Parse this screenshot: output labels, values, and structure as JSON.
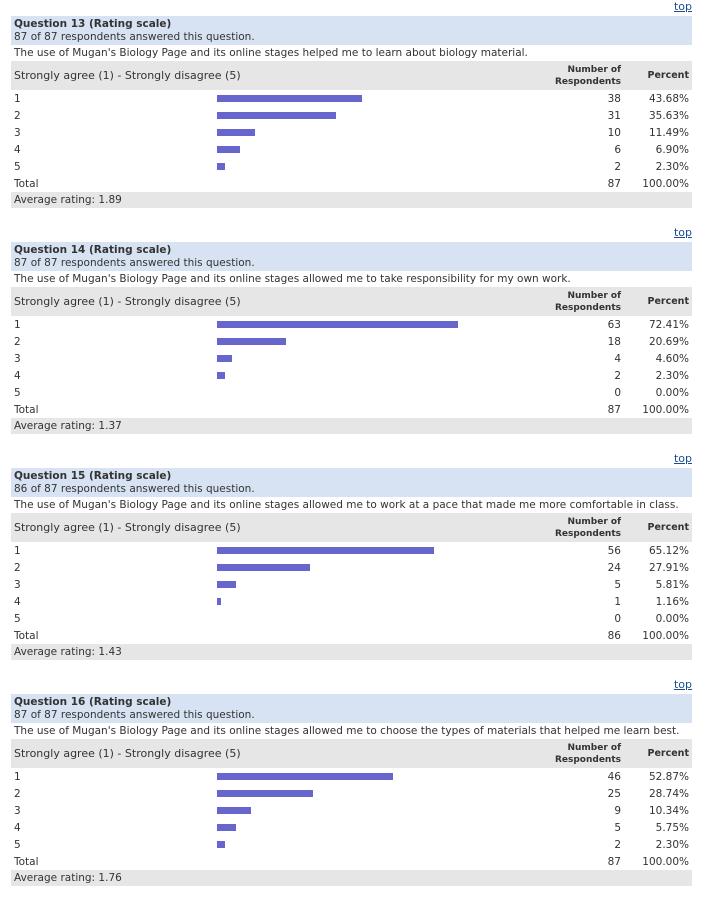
{
  "top_label": "top",
  "scale_label": "Strongly agree (1) - Strongly disagree (5)",
  "col_number": "Number of Respondents",
  "col_percent": "Percent",
  "total_label": "Total",
  "bar_color": "#6666cc",
  "questions": [
    {
      "title": "Question 13 (Rating scale)",
      "answered": "87 of 87 respondents answered this question.",
      "text": "The use of Mugan's Biology Page and its online stages helped me to learn about biology material.",
      "rows": [
        {
          "label": "1",
          "count": "38",
          "percent": "43.68%",
          "value": 43.68
        },
        {
          "label": "2",
          "count": "31",
          "percent": "35.63%",
          "value": 35.63
        },
        {
          "label": "3",
          "count": "10",
          "percent": "11.49%",
          "value": 11.49
        },
        {
          "label": "4",
          "count": "6",
          "percent": "6.90%",
          "value": 6.9
        },
        {
          "label": "5",
          "count": "2",
          "percent": "2.30%",
          "value": 2.3
        }
      ],
      "total_count": "87",
      "total_percent": "100.00%",
      "average": "Average rating: 1.89"
    },
    {
      "title": "Question 14 (Rating scale)",
      "answered": "87 of 87 respondents answered this question.",
      "text": "The use of Mugan's Biology Page and its online stages allowed me to take responsibility for my own work.",
      "rows": [
        {
          "label": "1",
          "count": "63",
          "percent": "72.41%",
          "value": 72.41
        },
        {
          "label": "2",
          "count": "18",
          "percent": "20.69%",
          "value": 20.69
        },
        {
          "label": "3",
          "count": "4",
          "percent": "4.60%",
          "value": 4.6
        },
        {
          "label": "4",
          "count": "2",
          "percent": "2.30%",
          "value": 2.3
        },
        {
          "label": "5",
          "count": "0",
          "percent": "0.00%",
          "value": 0
        }
      ],
      "total_count": "87",
      "total_percent": "100.00%",
      "average": "Average rating: 1.37"
    },
    {
      "title": "Question 15 (Rating scale)",
      "answered": "86 of 87 respondents answered this question.",
      "text": "The use of Mugan's Biology Page and its online stages allowed me to work at a pace that made me more comfortable in class.",
      "rows": [
        {
          "label": "1",
          "count": "56",
          "percent": "65.12%",
          "value": 65.12
        },
        {
          "label": "2",
          "count": "24",
          "percent": "27.91%",
          "value": 27.91
        },
        {
          "label": "3",
          "count": "5",
          "percent": "5.81%",
          "value": 5.81
        },
        {
          "label": "4",
          "count": "1",
          "percent": "1.16%",
          "value": 1.16
        },
        {
          "label": "5",
          "count": "0",
          "percent": "0.00%",
          "value": 0
        }
      ],
      "total_count": "86",
      "total_percent": "100.00%",
      "average": "Average rating: 1.43"
    },
    {
      "title": "Question 16 (Rating scale)",
      "answered": "87 of 87 respondents answered this question.",
      "text": "The use of Mugan's Biology Page and its online stages allowed me to choose the types of materials that helped me learn best.",
      "rows": [
        {
          "label": "1",
          "count": "46",
          "percent": "52.87%",
          "value": 52.87
        },
        {
          "label": "2",
          "count": "25",
          "percent": "28.74%",
          "value": 28.74
        },
        {
          "label": "3",
          "count": "9",
          "percent": "10.34%",
          "value": 10.34
        },
        {
          "label": "4",
          "count": "5",
          "percent": "5.75%",
          "value": 5.75
        },
        {
          "label": "5",
          "count": "2",
          "percent": "2.30%",
          "value": 2.3
        }
      ],
      "total_count": "87",
      "total_percent": "100.00%",
      "average": "Average rating: 1.76"
    }
  ]
}
